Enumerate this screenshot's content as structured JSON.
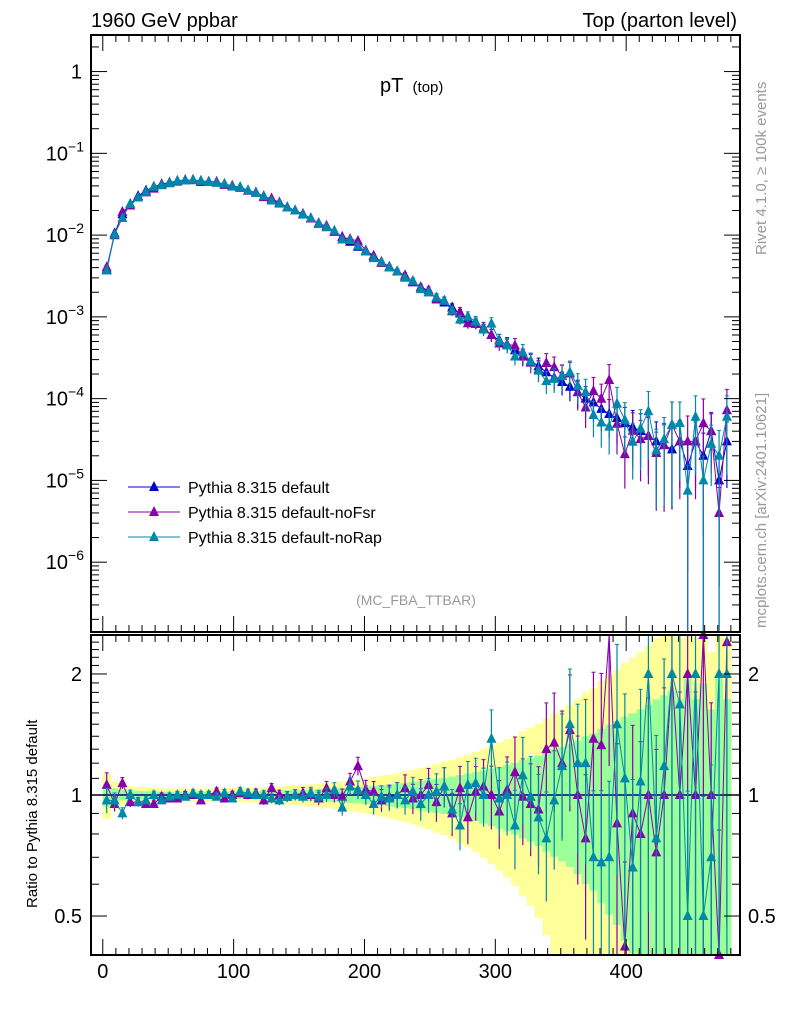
{
  "chart_data": [
    {
      "type": "line",
      "title": "pT",
      "title_sub": "(top)",
      "header_left": "1960 GeV ppbar",
      "header_right": "Top (parton level)",
      "side_label_top": "Rivet 4.1.0, ≥ 100k events",
      "side_label_bottom": "mcplots.cern.ch [arXiv:2401.10621]",
      "analysis_label": "(MC_FBA_TTBAR)",
      "yscale": "log",
      "ylim": [
        1.4e-07,
        2.8
      ],
      "xlim": [
        -9,
        487
      ],
      "xticks": [
        0,
        100,
        200,
        300,
        400
      ],
      "yticks": [
        {
          "v": 1,
          "base": "1",
          "exp": ""
        },
        {
          "v": 0.1,
          "base": "10",
          "exp": "−1"
        },
        {
          "v": 0.01,
          "base": "10",
          "exp": "−2"
        },
        {
          "v": 0.001,
          "base": "10",
          "exp": "−3"
        },
        {
          "v": 0.0001,
          "base": "10",
          "exp": "−4"
        },
        {
          "v": 1e-05,
          "base": "10",
          "exp": "−5"
        },
        {
          "v": 1e-06,
          "base": "10",
          "exp": "−6"
        }
      ],
      "legend_placement": "lower-left",
      "bin_width": 6,
      "x": [
        3,
        9,
        15,
        21,
        27,
        33,
        39,
        45,
        51,
        57,
        63,
        69,
        75,
        81,
        87,
        93,
        99,
        105,
        111,
        117,
        123,
        129,
        135,
        141,
        147,
        153,
        159,
        165,
        171,
        177,
        183,
        189,
        195,
        201,
        207,
        213,
        219,
        225,
        231,
        237,
        243,
        249,
        255,
        261,
        267,
        273,
        279,
        285,
        291,
        297,
        303,
        309,
        315,
        321,
        327,
        333,
        339,
        345,
        351,
        357,
        363,
        369,
        375,
        381,
        387,
        393,
        399,
        405,
        411,
        417,
        423,
        429,
        435,
        441,
        447,
        453,
        459,
        465,
        471,
        477
      ],
      "series": [
        {
          "name": "Pythia 8.315 default",
          "color": "#0000cc",
          "values": [
            0.0038,
            0.0105,
            0.018,
            0.024,
            0.03,
            0.035,
            0.039,
            0.042,
            0.044,
            0.046,
            0.047,
            0.047,
            0.046,
            0.045,
            0.044,
            0.042,
            0.04,
            0.038,
            0.035,
            0.033,
            0.03,
            0.027,
            0.025,
            0.022,
            0.02,
            0.018,
            0.016,
            0.014,
            0.0125,
            0.011,
            0.0095,
            0.0083,
            0.0072,
            0.0063,
            0.0055,
            0.0047,
            0.0041,
            0.0036,
            0.0031,
            0.0027,
            0.0023,
            0.002,
            0.0017,
            0.0015,
            0.0013,
            0.0011,
            0.00095,
            0.00082,
            0.0007,
            0.0006,
            0.00052,
            0.00045,
            0.00039,
            0.00033,
            0.00029,
            0.00025,
            0.00021,
            0.00018,
            0.00016,
            0.00014,
            0.00012,
            0.0001,
            9e-05,
            7.5e-05,
            6.5e-05,
            5.8e-05,
            5e-05,
            4.5e-05,
            4e-05,
            3.5e-05,
            3e-05,
            2.7e-05,
            2.4e-05,
            3e-05,
            1.5e-05,
            3e-05,
            2e-05,
            4e-05,
            1e-05,
            3e-05
          ]
        },
        {
          "name": "Pythia 8.315 default-noFsr",
          "color": "#8800aa",
          "ratio": [
            1.06,
            0.95,
            1.07,
            0.96,
            0.96,
            0.95,
            0.95,
            0.99,
            0.98,
            0.98,
            1.0,
            1.0,
            0.97,
            1.0,
            1.02,
            0.98,
            1.0,
            1.01,
            1.0,
            1.01,
            0.97,
            1.04,
            1.0,
            0.99,
            1.0,
            1.01,
            1.0,
            0.98,
            1.04,
            1.0,
            0.99,
            1.08,
            1.18,
            1.03,
            1.02,
            0.97,
            0.99,
            1.0,
            1.04,
            0.98,
            1.0,
            1.06,
            0.96,
            1.05,
            0.9,
            1.04,
            0.88,
            1.02,
            1.05,
            1.0,
            0.91,
            1.03,
            1.14,
            0.99,
            0.95,
            0.92,
            1.3,
            1.35,
            1.2,
            1.45,
            1.0,
            0.78,
            1.38,
            1.33,
            2.6,
            0.85,
            0.42,
            0.9,
            0.8,
            1.0,
            0.72,
            1.0,
            2.0,
            1.0,
            2.0,
            1.0,
            2.5,
            1.0,
            0.4,
            2.4
          ]
        },
        {
          "name": "Pythia 8.315 default-noRap",
          "color": "#0088aa",
          "ratio": [
            0.97,
            0.97,
            0.9,
            1.0,
            0.96,
            0.97,
            1.0,
            0.97,
            0.99,
            1.0,
            0.99,
            1.01,
            1.0,
            1.0,
            0.99,
            1.01,
            0.98,
            1.02,
            1.01,
            1.0,
            1.0,
            0.98,
            0.97,
            0.99,
            1.0,
            0.99,
            1.01,
            0.99,
            1.0,
            1.03,
            0.93,
            1.05,
            1.03,
            1.0,
            0.95,
            0.99,
            0.98,
            1.0,
            0.97,
            1.02,
            0.95,
            1.0,
            1.02,
            1.05,
            0.92,
            0.84,
            1.06,
            1.07,
            1.0,
            1.38,
            0.98,
            1.0,
            0.84,
            1.12,
            0.99,
            0.88,
            0.78,
            0.97,
            1.18,
            1.5,
            1.2,
            1.2,
            0.7,
            0.68,
            0.7,
            1.5,
            1.1,
            0.66,
            1.08,
            2.0,
            0.78,
            1.18,
            2.0,
            1.68,
            0.5,
            2.0,
            0.5,
            0.7,
            2.0,
            2.0
          ]
        }
      ]
    },
    {
      "type": "line",
      "ylabel": "Ratio to Pythia 8.315 default",
      "yscale": "log",
      "ylim": [
        0.4,
        2.5
      ],
      "yticks": [
        {
          "v": 0.5,
          "label": "0.5"
        },
        {
          "v": 1,
          "label": "1"
        },
        {
          "v": 2,
          "label": "2"
        }
      ],
      "xticks": [
        0,
        100,
        200,
        300,
        400
      ],
      "xtick_labels": [
        "0",
        "100",
        "200",
        "300",
        "400"
      ],
      "band_colors": {
        "inner": "#99ff99",
        "outer": "#ffff99"
      }
    }
  ]
}
